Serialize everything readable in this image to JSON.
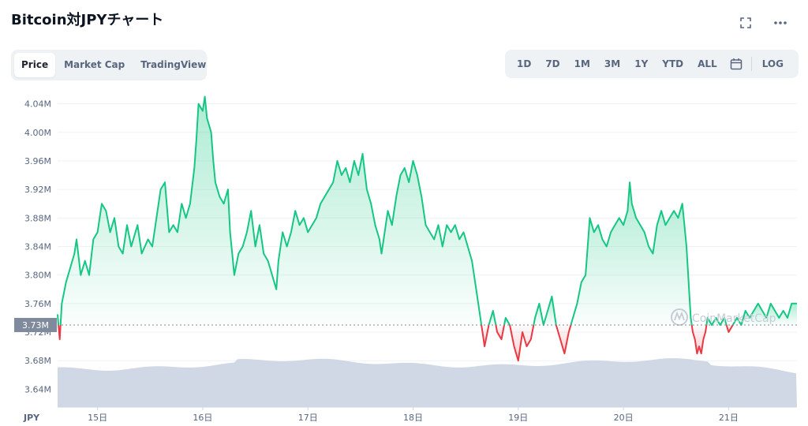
{
  "title": "Bitcoin対JPYチャート",
  "tabs_left": [
    {
      "label": "Price",
      "active": true
    },
    {
      "label": "Market Cap",
      "active": false
    },
    {
      "label": "TradingView",
      "active": false
    }
  ],
  "tabs_right": [
    "1D",
    "7D",
    "1M",
    "3M",
    "1Y",
    "YTD",
    "ALL"
  ],
  "log_label": "LOG",
  "icons": {
    "fullscreen": "expand-icon",
    "more": "more-icon",
    "calendar": "calendar-icon"
  },
  "watermark": "CoinMarketCap",
  "colors": {
    "up": "#16c784",
    "down": "#ea3943",
    "volume": "#cfd6e4",
    "reference": "#7b8597"
  },
  "chart_data": {
    "type": "line",
    "currency_label": "JPY",
    "y_ticks": [
      "4.04M",
      "4.00M",
      "3.96M",
      "3.92M",
      "3.88M",
      "3.84M",
      "3.80M",
      "3.76M",
      "3.72M",
      "3.68M",
      "3.64M"
    ],
    "ylim": [
      3.615,
      4.055
    ],
    "reference_value": 3.73,
    "reference_label": "3.73M",
    "x_ticks": [
      {
        "label": "15日",
        "t": 15
      },
      {
        "label": "16日",
        "t": 16
      },
      {
        "label": "17日",
        "t": 17
      },
      {
        "label": "18日",
        "t": 18
      },
      {
        "label": "19日",
        "t": 19
      },
      {
        "label": "20日",
        "t": 20
      },
      {
        "label": "21日",
        "t": 21
      }
    ],
    "xlim": [
      14.62,
      21.65
    ],
    "series": [
      {
        "values": [
          [
            14.62,
            3.745
          ],
          [
            14.64,
            3.71
          ],
          [
            14.66,
            3.76
          ],
          [
            14.7,
            3.79
          ],
          [
            14.74,
            3.81
          ],
          [
            14.78,
            3.83
          ],
          [
            14.8,
            3.85
          ],
          [
            14.84,
            3.8
          ],
          [
            14.88,
            3.82
          ],
          [
            14.92,
            3.8
          ],
          [
            14.96,
            3.85
          ],
          [
            15.0,
            3.86
          ],
          [
            15.04,
            3.9
          ],
          [
            15.08,
            3.89
          ],
          [
            15.12,
            3.86
          ],
          [
            15.16,
            3.88
          ],
          [
            15.2,
            3.84
          ],
          [
            15.24,
            3.83
          ],
          [
            15.28,
            3.87
          ],
          [
            15.32,
            3.84
          ],
          [
            15.38,
            3.87
          ],
          [
            15.42,
            3.83
          ],
          [
            15.48,
            3.85
          ],
          [
            15.52,
            3.84
          ],
          [
            15.56,
            3.88
          ],
          [
            15.6,
            3.92
          ],
          [
            15.64,
            3.93
          ],
          [
            15.68,
            3.86
          ],
          [
            15.72,
            3.87
          ],
          [
            15.76,
            3.86
          ],
          [
            15.8,
            3.9
          ],
          [
            15.84,
            3.88
          ],
          [
            15.88,
            3.9
          ],
          [
            15.92,
            3.95
          ],
          [
            15.94,
            3.99
          ],
          [
            15.96,
            4.04
          ],
          [
            16.0,
            4.03
          ],
          [
            16.02,
            4.05
          ],
          [
            16.04,
            4.02
          ],
          [
            16.08,
            4.0
          ],
          [
            16.1,
            3.96
          ],
          [
            16.12,
            3.93
          ],
          [
            16.16,
            3.91
          ],
          [
            16.2,
            3.9
          ],
          [
            16.24,
            3.92
          ],
          [
            16.26,
            3.86
          ],
          [
            16.28,
            3.83
          ],
          [
            16.3,
            3.8
          ],
          [
            16.34,
            3.83
          ],
          [
            16.38,
            3.84
          ],
          [
            16.42,
            3.86
          ],
          [
            16.46,
            3.89
          ],
          [
            16.5,
            3.84
          ],
          [
            16.54,
            3.87
          ],
          [
            16.58,
            3.83
          ],
          [
            16.62,
            3.82
          ],
          [
            16.66,
            3.8
          ],
          [
            16.7,
            3.78
          ],
          [
            16.72,
            3.82
          ],
          [
            16.76,
            3.86
          ],
          [
            16.8,
            3.84
          ],
          [
            16.84,
            3.86
          ],
          [
            16.88,
            3.89
          ],
          [
            16.92,
            3.87
          ],
          [
            16.96,
            3.88
          ],
          [
            17.0,
            3.86
          ],
          [
            17.04,
            3.87
          ],
          [
            17.08,
            3.88
          ],
          [
            17.12,
            3.9
          ],
          [
            17.16,
            3.91
          ],
          [
            17.2,
            3.92
          ],
          [
            17.24,
            3.93
          ],
          [
            17.28,
            3.96
          ],
          [
            17.32,
            3.94
          ],
          [
            17.36,
            3.95
          ],
          [
            17.4,
            3.93
          ],
          [
            17.44,
            3.96
          ],
          [
            17.48,
            3.94
          ],
          [
            17.52,
            3.97
          ],
          [
            17.56,
            3.92
          ],
          [
            17.6,
            3.9
          ],
          [
            17.64,
            3.87
          ],
          [
            17.68,
            3.85
          ],
          [
            17.7,
            3.83
          ],
          [
            17.72,
            3.85
          ],
          [
            17.76,
            3.89
          ],
          [
            17.8,
            3.87
          ],
          [
            17.84,
            3.91
          ],
          [
            17.88,
            3.94
          ],
          [
            17.92,
            3.95
          ],
          [
            17.96,
            3.93
          ],
          [
            18.0,
            3.96
          ],
          [
            18.04,
            3.94
          ],
          [
            18.08,
            3.91
          ],
          [
            18.12,
            3.87
          ],
          [
            18.16,
            3.86
          ],
          [
            18.2,
            3.85
          ],
          [
            18.24,
            3.87
          ],
          [
            18.28,
            3.84
          ],
          [
            18.32,
            3.87
          ],
          [
            18.36,
            3.86
          ],
          [
            18.4,
            3.87
          ],
          [
            18.44,
            3.85
          ],
          [
            18.48,
            3.86
          ],
          [
            18.52,
            3.84
          ],
          [
            18.56,
            3.82
          ],
          [
            18.6,
            3.78
          ],
          [
            18.64,
            3.74
          ],
          [
            18.66,
            3.72
          ],
          [
            18.68,
            3.7
          ],
          [
            18.72,
            3.73
          ],
          [
            18.76,
            3.75
          ],
          [
            18.8,
            3.72
          ],
          [
            18.84,
            3.71
          ],
          [
            18.88,
            3.74
          ],
          [
            18.92,
            3.73
          ],
          [
            18.96,
            3.7
          ],
          [
            19.0,
            3.68
          ],
          [
            19.04,
            3.72
          ],
          [
            19.08,
            3.7
          ],
          [
            19.12,
            3.71
          ],
          [
            19.16,
            3.74
          ],
          [
            19.2,
            3.76
          ],
          [
            19.24,
            3.73
          ],
          [
            19.28,
            3.75
          ],
          [
            19.32,
            3.77
          ],
          [
            19.36,
            3.73
          ],
          [
            19.4,
            3.71
          ],
          [
            19.44,
            3.69
          ],
          [
            19.48,
            3.72
          ],
          [
            19.52,
            3.74
          ],
          [
            19.56,
            3.76
          ],
          [
            19.6,
            3.79
          ],
          [
            19.64,
            3.8
          ],
          [
            19.66,
            3.84
          ],
          [
            19.68,
            3.88
          ],
          [
            19.72,
            3.86
          ],
          [
            19.76,
            3.87
          ],
          [
            19.8,
            3.85
          ],
          [
            19.84,
            3.84
          ],
          [
            19.88,
            3.86
          ],
          [
            19.92,
            3.87
          ],
          [
            19.96,
            3.88
          ],
          [
            20.0,
            3.87
          ],
          [
            20.04,
            3.89
          ],
          [
            20.06,
            3.93
          ],
          [
            20.08,
            3.9
          ],
          [
            20.12,
            3.88
          ],
          [
            20.16,
            3.87
          ],
          [
            20.2,
            3.86
          ],
          [
            20.24,
            3.84
          ],
          [
            20.28,
            3.83
          ],
          [
            20.32,
            3.87
          ],
          [
            20.36,
            3.89
          ],
          [
            20.4,
            3.87
          ],
          [
            20.44,
            3.88
          ],
          [
            20.48,
            3.89
          ],
          [
            20.52,
            3.88
          ],
          [
            20.56,
            3.9
          ],
          [
            20.58,
            3.87
          ],
          [
            20.6,
            3.84
          ],
          [
            20.62,
            3.79
          ],
          [
            20.64,
            3.74
          ],
          [
            20.66,
            3.72
          ],
          [
            20.68,
            3.71
          ],
          [
            20.7,
            3.69
          ],
          [
            20.72,
            3.7
          ],
          [
            20.74,
            3.69
          ],
          [
            20.76,
            3.71
          ],
          [
            20.78,
            3.72
          ],
          [
            20.8,
            3.74
          ],
          [
            20.84,
            3.73
          ],
          [
            20.88,
            3.74
          ],
          [
            20.92,
            3.73
          ],
          [
            20.96,
            3.74
          ],
          [
            21.0,
            3.72
          ],
          [
            21.04,
            3.73
          ],
          [
            21.08,
            3.74
          ],
          [
            21.12,
            3.73
          ],
          [
            21.16,
            3.75
          ],
          [
            21.2,
            3.74
          ],
          [
            21.24,
            3.75
          ],
          [
            21.28,
            3.76
          ],
          [
            21.32,
            3.75
          ],
          [
            21.36,
            3.74
          ],
          [
            21.4,
            3.76
          ],
          [
            21.44,
            3.75
          ],
          [
            21.48,
            3.74
          ],
          [
            21.52,
            3.75
          ],
          [
            21.56,
            3.74
          ],
          [
            21.6,
            3.76
          ],
          [
            21.65,
            3.76
          ]
        ]
      }
    ]
  }
}
